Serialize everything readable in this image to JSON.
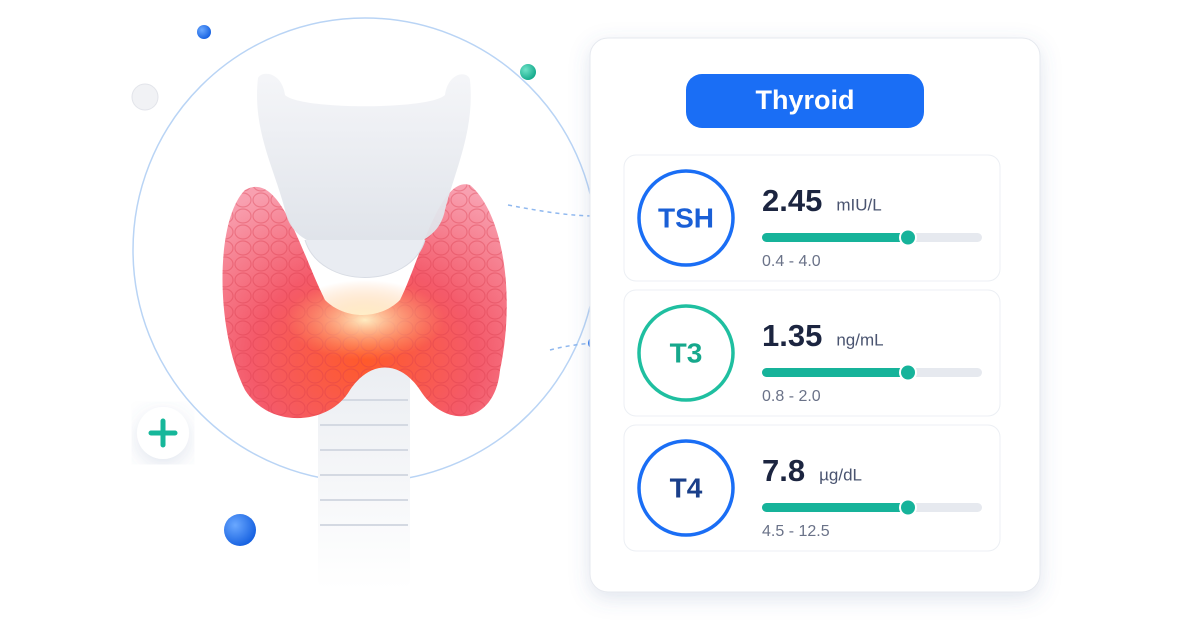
{
  "header": {
    "title": "Thyroid"
  },
  "tests": [
    {
      "name": "TSH",
      "value": "2.45",
      "unit": "mIU/L",
      "range": "0.4 - 4.0"
    },
    {
      "name": "T3",
      "value": "1.35",
      "unit": "ng/mL",
      "range": "0.8 - 2.0"
    },
    {
      "name": "T4",
      "value": "7.8",
      "unit": "µg/dL",
      "range": "4.5 - 12.5"
    }
  ]
}
